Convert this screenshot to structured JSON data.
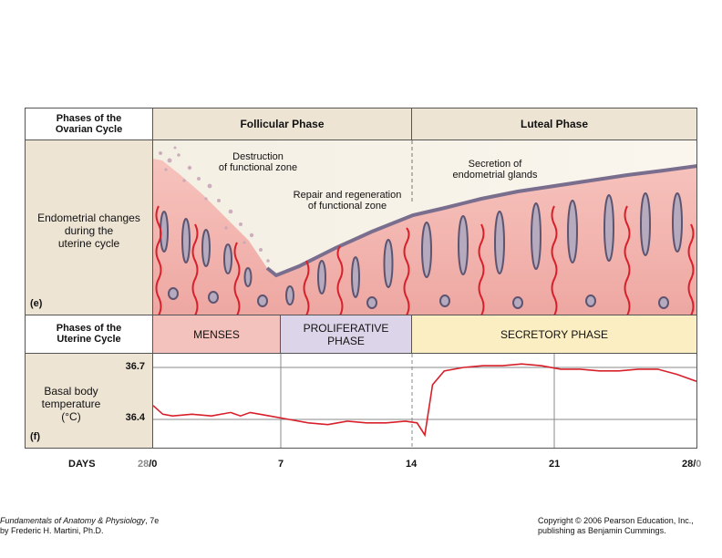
{
  "header": {
    "ovarian_label_1": "Phases of the",
    "ovarian_label_2": "Ovarian Cycle",
    "follicular": "Follicular Phase",
    "luteal": "Luteal Phase"
  },
  "endometrium": {
    "label_1": "Endometrial changes",
    "label_2": "during the",
    "label_3": "uterine cycle",
    "panel": "(e)",
    "annot_destruction_1": "Destruction",
    "annot_destruction_2": "of functional zone",
    "annot_repair_1": "Repair and regeneration",
    "annot_repair_2": "of functional zone",
    "annot_secretion_1": "Secretion of",
    "annot_secretion_2": "endometrial glands"
  },
  "uterine": {
    "label_1": "Phases of the",
    "label_2": "Uterine Cycle",
    "menses": "MENSES",
    "proliferative_1": "PROLIFERATIVE",
    "proliferative_2": "PHASE",
    "secretory": "SECRETORY PHASE"
  },
  "temperature": {
    "label_1": "Basal body",
    "label_2": "temperature",
    "label_3": "(°C)",
    "panel": "(f)",
    "y_high": "36.7",
    "y_low": "36.4"
  },
  "days": {
    "label": "DAYS",
    "tick_0a": "28",
    "tick_0b": "/0",
    "tick_7": "7",
    "tick_14": "14",
    "tick_21": "21",
    "tick_28a": "28/",
    "tick_28b": "0"
  },
  "footer": {
    "book_title": "Fundamentals of Anatomy & Physiology",
    "book_edition": ", 7e",
    "author": "by Frederic H. Martini, Ph.D.",
    "copyright_1": "Copyright © 2006 Pearson Education, Inc.,",
    "copyright_2": "publishing as Benjamin Cummings."
  },
  "colors": {
    "tan": "#ede4d4",
    "menses": "#f4c2bc",
    "proliferative": "#dcd4e8",
    "secretory": "#fbeec2",
    "tissue": "#f0b4b0",
    "vessel": "#d8202a",
    "gland": "#6e6680"
  },
  "chart_data": {
    "type": "line",
    "xlabel": "DAYS",
    "x_ticks": [
      "28/0",
      "7",
      "14",
      "21",
      "28/0"
    ],
    "y_ticks": [
      36.4,
      36.7
    ],
    "xlim": [
      0,
      28
    ],
    "series": [
      {
        "x": [
          0,
          0.5,
          1,
          2,
          3,
          4,
          4.5,
          5,
          5.5,
          6,
          7,
          8,
          9,
          10,
          11,
          12,
          13,
          13.6,
          14,
          14.4,
          15,
          16,
          17,
          18,
          19,
          20,
          21,
          22,
          23,
          24,
          25,
          26,
          27,
          28
        ],
        "values": [
          36.48,
          36.43,
          36.42,
          36.43,
          36.42,
          36.44,
          36.42,
          36.44,
          36.43,
          36.42,
          36.4,
          36.38,
          36.37,
          36.39,
          36.38,
          36.38,
          36.39,
          36.38,
          36.31,
          36.6,
          36.68,
          36.7,
          36.71,
          36.71,
          36.72,
          36.71,
          36.69,
          36.69,
          36.68,
          36.68,
          36.69,
          36.69,
          36.66,
          36.62
        ]
      }
    ]
  }
}
